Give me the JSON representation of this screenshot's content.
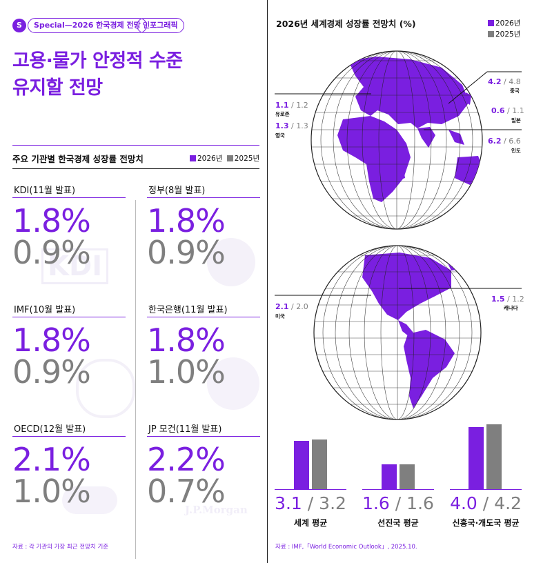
{
  "header": {
    "badge": "S",
    "series": "Special—2026 한국경제 전망",
    "tag": "인포그래픽",
    "headline_1": "고용·물가 안정적 수준",
    "headline_2": "유지할 전망"
  },
  "colors": {
    "y2026": "#7a1fe0",
    "y2025": "#7f7f7f"
  },
  "left": {
    "title": "주요 기관별 한국경제 성장률 전망치",
    "legend_2026": "2026년",
    "legend_2025": "2025년",
    "institutions": [
      {
        "name": "KDI(11월 발표)",
        "v2026": "1.8%",
        "v2025": "0.9%",
        "watermark": "KDI"
      },
      {
        "name": "정부(8월 발표)",
        "v2026": "1.8%",
        "v2025": "0.9%"
      },
      {
        "name": "IMF(10월 발표)",
        "v2026": "1.8%",
        "v2025": "0.9%"
      },
      {
        "name": "한국은행(11월 발표)",
        "v2026": "1.8%",
        "v2025": "1.0%"
      },
      {
        "name": "OECD(12월 발표)",
        "v2026": "2.1%",
        "v2025": "1.0%"
      },
      {
        "name": "JP 모건(11월 발표)",
        "v2026": "2.2%",
        "v2025": "0.7%",
        "watermark": "J.P.Morgan"
      }
    ],
    "source": "자료 : 각 기관의 가장 최근 전망치 기준"
  },
  "right": {
    "title": "2026년 세계경제 성장률 전망치 (%)",
    "legend_2026": "2026년",
    "legend_2025": "2025년",
    "countries": [
      {
        "name": "유로존",
        "v2026": "1.1",
        "v2025": "1.2"
      },
      {
        "name": "영국",
        "v2026": "1.3",
        "v2025": "1.3"
      },
      {
        "name": "중국",
        "v2026": "4.2",
        "v2025": "4.8"
      },
      {
        "name": "일본",
        "v2026": "0.6",
        "v2025": "1.1"
      },
      {
        "name": "인도",
        "v2026": "6.2",
        "v2025": "6.6"
      },
      {
        "name": "미국",
        "v2026": "2.1",
        "v2025": "2.0"
      },
      {
        "name": "캐나다",
        "v2026": "1.5",
        "v2025": "1.2"
      }
    ],
    "averages": [
      {
        "name": "세계 평균",
        "v2026": 3.1,
        "v2025": 3.2,
        "t2026": "3.1",
        "t2025": "3.2"
      },
      {
        "name": "선진국 평균",
        "v2026": 1.6,
        "v2025": 1.6,
        "t2026": "1.6",
        "t2025": "1.6"
      },
      {
        "name": "신흥국·개도국 평균",
        "v2026": 4.0,
        "v2025": 4.2,
        "t2026": "4.0",
        "t2025": "4.2"
      }
    ],
    "slash": "/",
    "source": "자료 : IMF,「World Economic Outlook」, 2025.10."
  }
}
